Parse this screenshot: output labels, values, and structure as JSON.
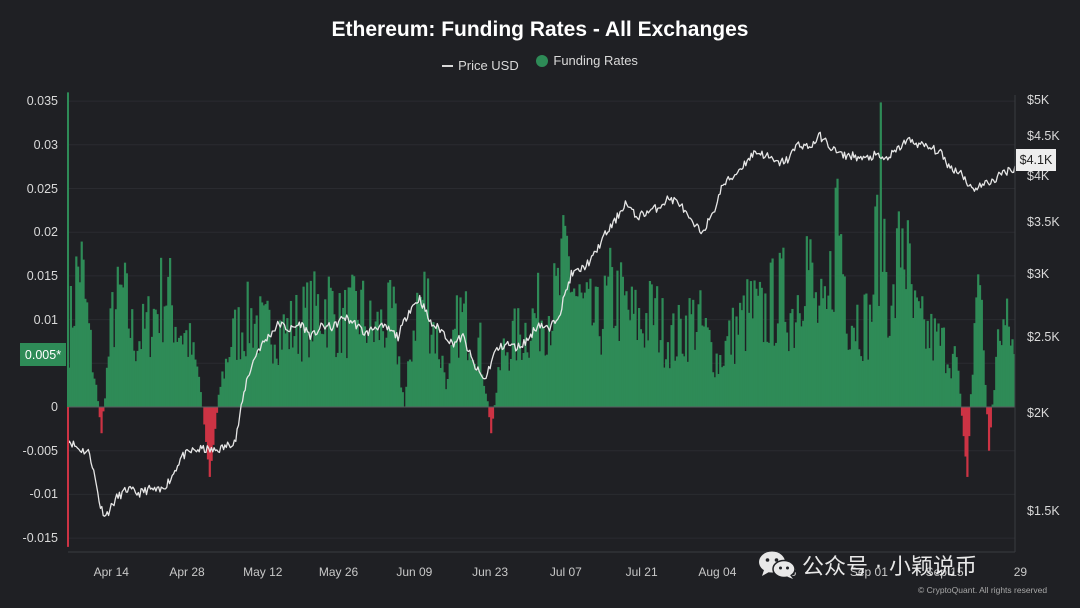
{
  "chart_data": {
    "type": "bar+line",
    "title": "Ethereum: Funding Rates - All Exchanges",
    "legend": {
      "position": "top-center",
      "items": [
        {
          "name": "Price USD",
          "kind": "line",
          "color": "#d9d9d9"
        },
        {
          "name": "Funding Rates",
          "kind": "dot",
          "color": "#2e8b57"
        }
      ]
    },
    "left_axis": {
      "range": [
        -0.016,
        0.036
      ],
      "ticks": [
        "0.035",
        "0.03",
        "0.025",
        "0.02",
        "0.015",
        "0.01",
        "0.005*",
        "0",
        "-0.005",
        "-0.01",
        "-0.015"
      ],
      "tick_values": [
        0.035,
        0.03,
        0.025,
        0.02,
        0.015,
        0.01,
        0.005,
        0,
        -0.005,
        -0.01,
        -0.015
      ],
      "highlight_label": "0.005*",
      "highlight_value": 0.005
    },
    "right_axis": {
      "scale": "log",
      "ticks": [
        "$5K",
        "$4.5K",
        "$4K",
        "$3.5K",
        "$3K",
        "$2.5K",
        "$2K",
        "$1.5K"
      ],
      "tick_values": [
        5000,
        4500,
        4000,
        3500,
        3000,
        2500,
        2000,
        1500
      ],
      "last_price_label": "$4.1K",
      "last_price_value": 4100
    },
    "x_axis": {
      "range": [
        "2024-04-06",
        "2024-09-28"
      ],
      "ticks": [
        "Apr 14",
        "Apr 28",
        "May 12",
        "May 26",
        "Jun 09",
        "Jun 23",
        "Jul 07",
        "Jul 21",
        "Aug 04",
        "8",
        "Sep 01",
        "Sep 15",
        "29"
      ],
      "tick_dates": [
        "2024-04-14",
        "2024-04-28",
        "2024-05-12",
        "2024-05-26",
        "2024-06-09",
        "2024-06-23",
        "2024-07-07",
        "2024-07-21",
        "2024-08-04",
        "2024-08-18",
        "2024-09-01",
        "2024-09-15",
        "2024-09-29"
      ]
    },
    "zero_line": true,
    "colors": {
      "positive": "#2e8b57",
      "negative": "#cc3344",
      "price": "#e6e6e6",
      "background": "#1f2024"
    },
    "funding_anchors": [
      [
        "2024-04-06",
        0.01
      ],
      [
        "2024-04-08",
        0.02
      ],
      [
        "2024-04-10",
        0.008
      ],
      [
        "2024-04-12",
        -0.003
      ],
      [
        "2024-04-14",
        0.012
      ],
      [
        "2024-04-16",
        0.015
      ],
      [
        "2024-04-18",
        0.009
      ],
      [
        "2024-04-20",
        0.01
      ],
      [
        "2024-04-22",
        0.013
      ],
      [
        "2024-04-24",
        0.016
      ],
      [
        "2024-04-26",
        0.011
      ],
      [
        "2024-04-28",
        0.009
      ],
      [
        "2024-04-30",
        0.004
      ],
      [
        "2024-05-02",
        -0.008
      ],
      [
        "2024-05-04",
        0.003
      ],
      [
        "2024-05-06",
        0.009
      ],
      [
        "2024-05-08",
        0.011
      ],
      [
        "2024-05-10",
        0.012
      ],
      [
        "2024-05-12",
        0.01
      ],
      [
        "2024-05-14",
        0.011
      ],
      [
        "2024-05-16",
        0.01
      ],
      [
        "2024-05-18",
        0.011
      ],
      [
        "2024-05-20",
        0.012
      ],
      [
        "2024-05-22",
        0.013
      ],
      [
        "2024-05-24",
        0.014
      ],
      [
        "2024-05-26",
        0.011
      ],
      [
        "2024-05-28",
        0.012
      ],
      [
        "2024-05-30",
        0.013
      ],
      [
        "2024-06-01",
        0.01
      ],
      [
        "2024-06-03",
        0.011
      ],
      [
        "2024-06-05",
        0.012
      ],
      [
        "2024-06-07",
        0.0
      ],
      [
        "2024-06-09",
        0.013
      ],
      [
        "2024-06-11",
        0.015
      ],
      [
        "2024-06-13",
        0.009
      ],
      [
        "2024-06-15",
        0.003
      ],
      [
        "2024-06-17",
        0.012
      ],
      [
        "2024-06-19",
        0.011
      ],
      [
        "2024-06-21",
        0.008
      ],
      [
        "2024-06-23",
        -0.003
      ],
      [
        "2024-06-25",
        0.007
      ],
      [
        "2024-06-27",
        0.009
      ],
      [
        "2024-06-29",
        0.01
      ],
      [
        "2024-07-01",
        0.012
      ],
      [
        "2024-07-03",
        0.013
      ],
      [
        "2024-07-05",
        0.014
      ],
      [
        "2024-07-07",
        0.02
      ],
      [
        "2024-07-09",
        0.014
      ],
      [
        "2024-07-11",
        0.012
      ],
      [
        "2024-07-13",
        0.011
      ],
      [
        "2024-07-15",
        0.015
      ],
      [
        "2024-07-17",
        0.014
      ],
      [
        "2024-07-19",
        0.012
      ],
      [
        "2024-07-21",
        0.011
      ],
      [
        "2024-07-23",
        0.013
      ],
      [
        "2024-07-25",
        0.01
      ],
      [
        "2024-07-27",
        0.009
      ],
      [
        "2024-07-29",
        0.011
      ],
      [
        "2024-07-31",
        0.012
      ],
      [
        "2024-08-02",
        0.009
      ],
      [
        "2024-08-04",
        0.006
      ],
      [
        "2024-08-06",
        0.009
      ],
      [
        "2024-08-08",
        0.011
      ],
      [
        "2024-08-10",
        0.013
      ],
      [
        "2024-08-12",
        0.012
      ],
      [
        "2024-08-14",
        0.014
      ],
      [
        "2024-08-16",
        0.015
      ],
      [
        "2024-08-18",
        0.012
      ],
      [
        "2024-08-20",
        0.022
      ],
      [
        "2024-08-22",
        0.013
      ],
      [
        "2024-08-24",
        0.011
      ],
      [
        "2024-08-26",
        0.027
      ],
      [
        "2024-08-28",
        0.013
      ],
      [
        "2024-08-30",
        0.012
      ],
      [
        "2024-09-01",
        0.011
      ],
      [
        "2024-09-03",
        0.028
      ],
      [
        "2024-09-05",
        0.011
      ],
      [
        "2024-09-07",
        0.025
      ],
      [
        "2024-09-09",
        0.012
      ],
      [
        "2024-09-11",
        0.01
      ],
      [
        "2024-09-13",
        0.009
      ],
      [
        "2024-09-15",
        0.008
      ],
      [
        "2024-09-17",
        0.006
      ],
      [
        "2024-09-19",
        -0.008
      ],
      [
        "2024-09-21",
        0.02
      ],
      [
        "2024-09-23",
        -0.005
      ],
      [
        "2024-09-25",
        0.011
      ],
      [
        "2024-09-27",
        0.01
      ],
      [
        "2024-09-28",
        0.005
      ]
    ],
    "price_anchors": [
      [
        "2024-04-06",
        1850
      ],
      [
        "2024-04-08",
        1800
      ],
      [
        "2024-04-10",
        1780
      ],
      [
        "2024-04-12",
        1520
      ],
      [
        "2024-04-13",
        1480
      ],
      [
        "2024-04-15",
        1560
      ],
      [
        "2024-04-17",
        1600
      ],
      [
        "2024-04-19",
        1580
      ],
      [
        "2024-04-21",
        1600
      ],
      [
        "2024-04-23",
        1590
      ],
      [
        "2024-04-25",
        1650
      ],
      [
        "2024-04-27",
        1760
      ],
      [
        "2024-04-29",
        1790
      ],
      [
        "2024-05-01",
        1800
      ],
      [
        "2024-05-03",
        1790
      ],
      [
        "2024-05-05",
        1810
      ],
      [
        "2024-05-07",
        1850
      ],
      [
        "2024-05-09",
        2200
      ],
      [
        "2024-05-11",
        2400
      ],
      [
        "2024-05-13",
        2500
      ],
      [
        "2024-05-15",
        2600
      ],
      [
        "2024-05-17",
        2550
      ],
      [
        "2024-05-19",
        2600
      ],
      [
        "2024-05-21",
        2500
      ],
      [
        "2024-05-23",
        2580
      ],
      [
        "2024-05-25",
        2570
      ],
      [
        "2024-05-27",
        2650
      ],
      [
        "2024-05-29",
        2600
      ],
      [
        "2024-05-31",
        2520
      ],
      [
        "2024-06-02",
        2580
      ],
      [
        "2024-06-04",
        2560
      ],
      [
        "2024-06-06",
        2500
      ],
      [
        "2024-06-08",
        2700
      ],
      [
        "2024-06-10",
        2800
      ],
      [
        "2024-06-12",
        2600
      ],
      [
        "2024-06-14",
        2550
      ],
      [
        "2024-06-16",
        2450
      ],
      [
        "2024-06-18",
        2500
      ],
      [
        "2024-06-20",
        2300
      ],
      [
        "2024-06-22",
        2200
      ],
      [
        "2024-06-24",
        2400
      ],
      [
        "2024-06-26",
        2450
      ],
      [
        "2024-06-28",
        2420
      ],
      [
        "2024-06-30",
        2480
      ],
      [
        "2024-07-02",
        2600
      ],
      [
        "2024-07-04",
        2550
      ],
      [
        "2024-07-06",
        2700
      ],
      [
        "2024-07-08",
        3000
      ],
      [
        "2024-07-10",
        3050
      ],
      [
        "2024-07-12",
        3150
      ],
      [
        "2024-07-14",
        3350
      ],
      [
        "2024-07-16",
        3500
      ],
      [
        "2024-07-18",
        3700
      ],
      [
        "2024-07-20",
        3550
      ],
      [
        "2024-07-22",
        3600
      ],
      [
        "2024-07-24",
        3650
      ],
      [
        "2024-07-26",
        3750
      ],
      [
        "2024-07-28",
        3700
      ],
      [
        "2024-07-30",
        3500
      ],
      [
        "2024-08-01",
        3400
      ],
      [
        "2024-08-03",
        3550
      ],
      [
        "2024-08-05",
        3900
      ],
      [
        "2024-08-07",
        4000
      ],
      [
        "2024-08-09",
        4150
      ],
      [
        "2024-08-11",
        4300
      ],
      [
        "2024-08-13",
        4250
      ],
      [
        "2024-08-15",
        4150
      ],
      [
        "2024-08-17",
        4200
      ],
      [
        "2024-08-19",
        4400
      ],
      [
        "2024-08-21",
        4350
      ],
      [
        "2024-08-23",
        4500
      ],
      [
        "2024-08-25",
        4350
      ],
      [
        "2024-08-27",
        4250
      ],
      [
        "2024-08-29",
        4250
      ],
      [
        "2024-08-31",
        4200
      ],
      [
        "2024-09-02",
        4250
      ],
      [
        "2024-09-04",
        4200
      ],
      [
        "2024-09-06",
        4300
      ],
      [
        "2024-09-08",
        4450
      ],
      [
        "2024-09-10",
        4400
      ],
      [
        "2024-09-12",
        4350
      ],
      [
        "2024-09-14",
        4300
      ],
      [
        "2024-09-16",
        4100
      ],
      [
        "2024-09-18",
        4050
      ],
      [
        "2024-09-20",
        3850
      ],
      [
        "2024-09-22",
        3900
      ],
      [
        "2024-09-24",
        3950
      ],
      [
        "2024-09-26",
        4050
      ],
      [
        "2024-09-28",
        4100
      ]
    ]
  },
  "watermark": {
    "text": "公众号 · 小颖说币",
    "icon": "wechat-icon"
  },
  "credit": "© CryptoQuant. All rights reserved"
}
